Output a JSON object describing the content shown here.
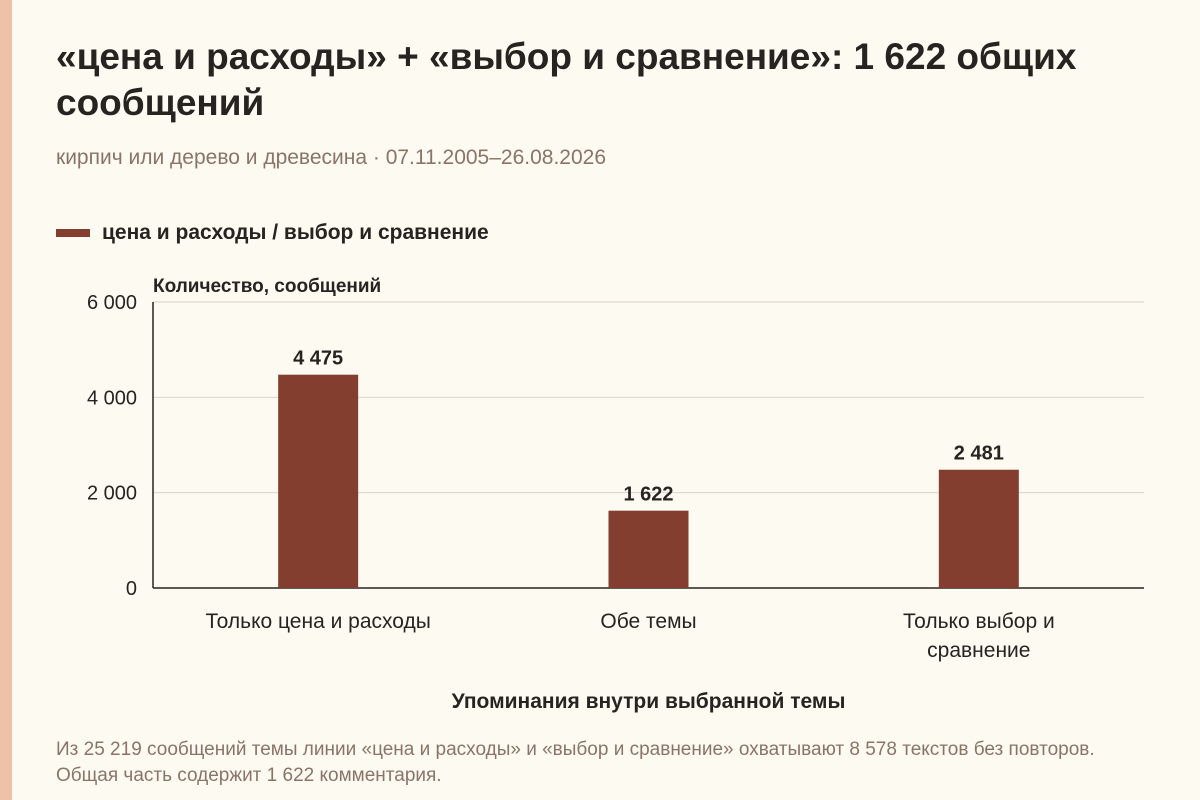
{
  "title": "«цена и расходы» + «выбор и сравнение»: 1 622 общих сообщений",
  "subtitle": "кирпич или дерево и древесина · 07.11.2005–26.08.2026",
  "footnote": "Из 25 219 сообщений темы линии «цена и расходы» и «выбор и сравнение» охватывают 8 578 текстов без повторов. Общая часть содержит 1 622 комментария.",
  "colors": {
    "bar": "#843e2f",
    "accent_strip": "#efc1a8",
    "background": "#fdfaf1"
  },
  "chart_data": {
    "type": "bar",
    "title": "«цена и расходы» + «выбор и сравнение»: 1 622 общих сообщений",
    "subtitle": "кирпич или дерево и древесина · 07.11.2005–26.08.2026",
    "ylabel": "Количество, сообщений",
    "xlabel": "Упоминания внутри выбранной темы",
    "ylim": [
      0,
      6000
    ],
    "yticks": [
      0,
      2000,
      4000,
      6000
    ],
    "ytick_labels": [
      "0",
      "2 000",
      "4 000",
      "6 000"
    ],
    "grid": true,
    "legend_position": "top-left",
    "categories": [
      [
        "Только цена и расходы"
      ],
      [
        "Обе темы"
      ],
      [
        "Только выбор и",
        "сравнение"
      ]
    ],
    "series": [
      {
        "name": "цена и расходы / выбор и сравнение",
        "values": [
          4475,
          1622,
          2481
        ],
        "value_labels": [
          "4 475",
          "1 622",
          "2 481"
        ]
      }
    ]
  }
}
